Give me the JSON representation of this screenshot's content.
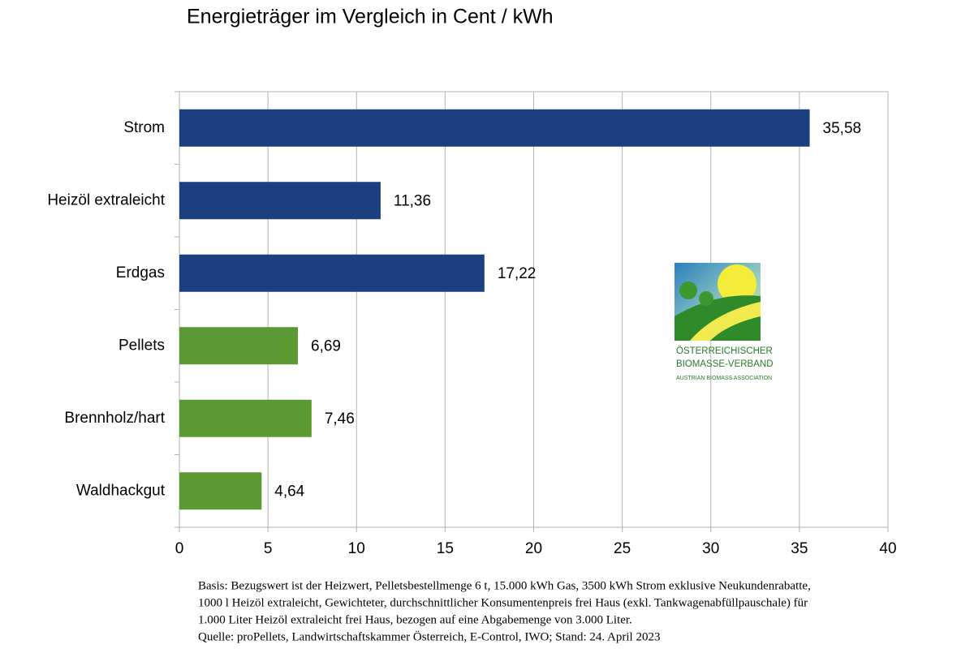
{
  "chart_data": {
    "type": "bar",
    "orientation": "horizontal",
    "title": "Energieträger im Vergleich in Cent / kWh",
    "categories": [
      "Strom",
      "Heizöl extraleicht",
      "Erdgas",
      "Pellets",
      "Brennholz/hart",
      "Waldhackgut"
    ],
    "values": [
      35.58,
      11.36,
      17.22,
      6.69,
      7.46,
      4.64
    ],
    "value_labels": [
      "35,58",
      "11,36",
      "17,22",
      "6,69",
      "7,46",
      "4,64"
    ],
    "colors": [
      "#1b3f7f",
      "#1b3f7f",
      "#1b3f7f",
      "#5b9a32",
      "#5b9a32",
      "#5b9a32"
    ],
    "xlim": [
      0,
      40
    ],
    "xticks": [
      0,
      5,
      10,
      15,
      20,
      25,
      30,
      35,
      40
    ],
    "grid": true,
    "notes": [
      "Basis: Bezugswert ist der Heizwert, Pelletsbestellmenge 6 t, 15.000 kWh Gas, 3500 kWh Strom exklusive Neukundenrabatte,",
      "1000 l Heizöl extraleicht, Gewichteter, durchschnittlicher Konsumentenpreis frei Haus (exkl. Tankwagenabfüllpauschale) für",
      "1.000 Liter Heizöl extraleicht frei Haus, bezogen auf eine Abgabemenge von 3.000 Liter.",
      "Quelle: proPellets, Landwirtschaftskammer Österreich, E-Control, IWO; Stand: 24. April 2023"
    ]
  },
  "logo": {
    "line1": "Österreichischer",
    "line2": "Biomasse-Verband",
    "line3": "Austrian Biomass Association"
  }
}
